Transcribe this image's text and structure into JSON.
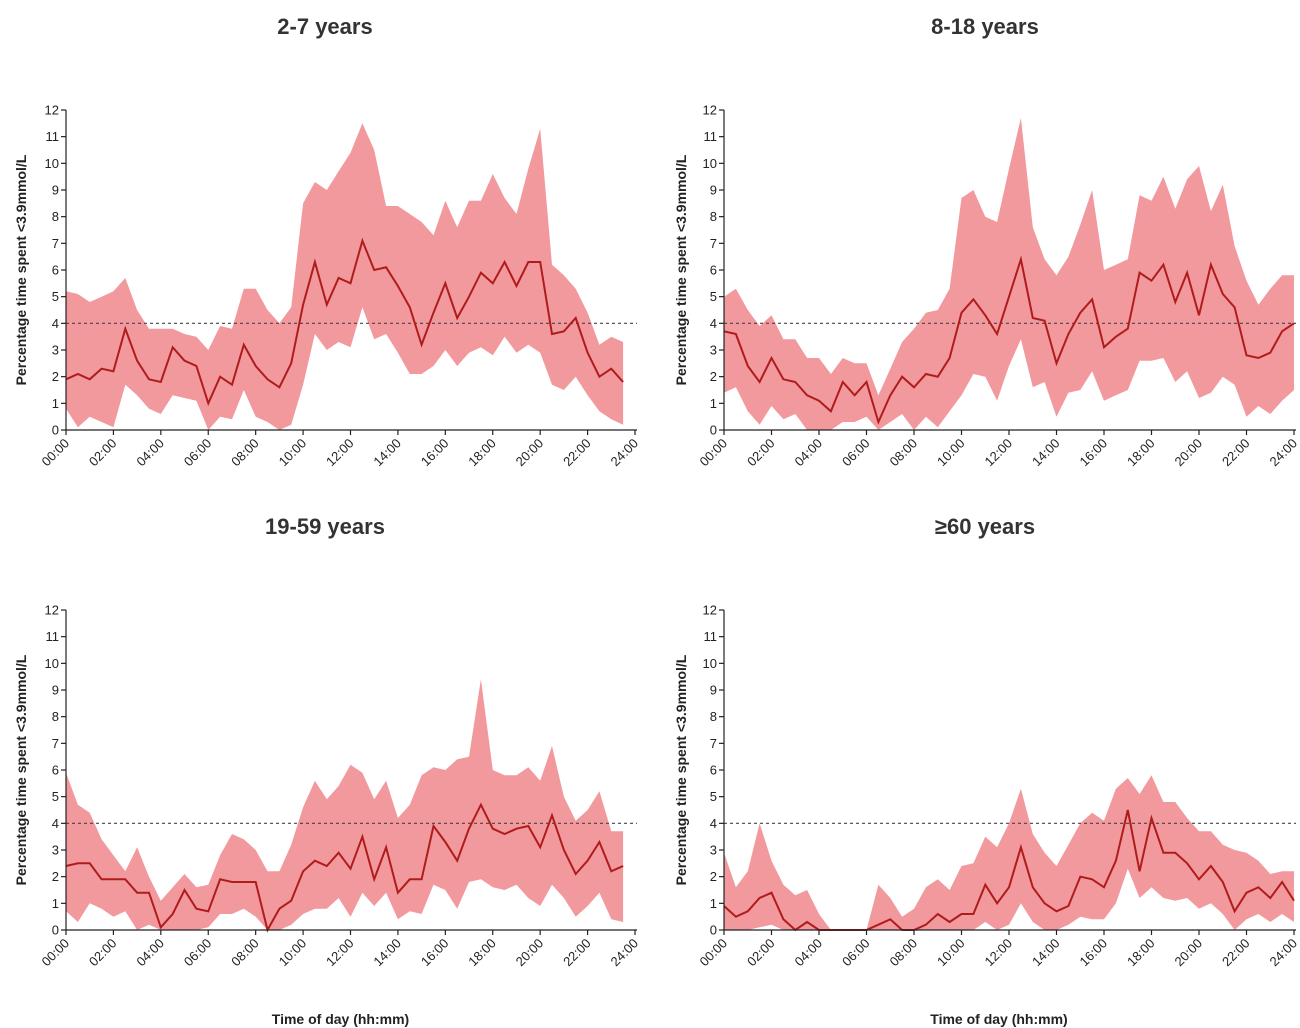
{
  "chart_data": [
    {
      "type": "line",
      "title": "2-7 years",
      "ylabel": "Percentage time spent <3.9mmol/L",
      "xlabel": "",
      "ylim": [
        0,
        12
      ],
      "xlim": [
        0,
        24
      ],
      "yticks": [
        "0",
        "1",
        "2",
        "3",
        "4",
        "5",
        "6",
        "7",
        "8",
        "9",
        "10",
        "11",
        "12"
      ],
      "xticks": [
        "00:00",
        "02:00",
        "04:00",
        "06:00",
        "08:00",
        "10:00",
        "12:00",
        "14:00",
        "16:00",
        "18:00",
        "20:00",
        "22:00",
        "24:00"
      ],
      "reference_line": 4,
      "x": [
        0,
        0.5,
        1,
        1.5,
        2,
        2.5,
        3,
        3.5,
        4,
        4.5,
        5,
        5.5,
        6,
        6.5,
        7,
        7.5,
        8,
        8.5,
        9,
        9.5,
        10,
        10.5,
        11,
        11.5,
        12,
        12.5,
        13,
        13.5,
        14,
        14.5,
        15,
        15.5,
        16,
        16.5,
        17,
        17.5,
        18,
        18.5,
        19,
        19.5,
        20,
        20.5,
        21,
        21.5,
        22,
        22.5,
        23,
        23.5
      ],
      "series": [
        {
          "values": [
            1.9,
            2.1,
            1.9,
            2.3,
            2.2,
            3.8,
            2.6,
            1.9,
            1.8,
            3.1,
            2.6,
            2.4,
            1.0,
            2.0,
            1.7,
            3.2,
            2.4,
            1.9,
            1.6,
            2.5,
            4.7,
            6.3,
            4.7,
            5.7,
            5.5,
            7.1,
            6.0,
            6.1,
            5.4,
            4.6,
            3.2,
            4.4,
            5.5,
            4.2,
            5.0,
            5.9,
            5.5,
            6.3,
            5.4,
            6.3,
            6.3,
            3.6,
            3.7,
            4.2,
            2.9,
            2.0,
            2.3,
            1.8
          ]
        },
        {
          "values": [
            5.2,
            5.1,
            4.8,
            5.0,
            5.2,
            5.7,
            4.5,
            3.8,
            3.8,
            3.8,
            3.6,
            3.5,
            3.0,
            3.9,
            3.8,
            5.3,
            5.3,
            4.5,
            4.0,
            4.6,
            8.5,
            9.3,
            9.0,
            9.7,
            10.4,
            11.5,
            10.5,
            8.4,
            8.4,
            8.1,
            7.8,
            7.3,
            8.6,
            7.6,
            8.6,
            8.6,
            9.6,
            8.7,
            8.1,
            9.8,
            11.3,
            6.2,
            5.8,
            5.3,
            4.4,
            3.2,
            3.5,
            3.3
          ]
        },
        {
          "values": [
            0.8,
            0.1,
            0.5,
            0.3,
            0.1,
            1.7,
            1.3,
            0.8,
            0.6,
            1.3,
            1.2,
            1.1,
            0.0,
            0.5,
            0.4,
            1.5,
            0.5,
            0.3,
            0.0,
            0.2,
            1.7,
            3.6,
            3.0,
            3.3,
            3.1,
            4.6,
            3.4,
            3.6,
            2.9,
            2.1,
            2.1,
            2.4,
            3.0,
            2.4,
            2.9,
            3.1,
            2.8,
            3.5,
            2.9,
            3.2,
            2.9,
            1.7,
            1.5,
            2.0,
            1.3,
            0.7,
            0.4,
            0.2
          ]
        }
      ]
    },
    {
      "type": "line",
      "title": "8-18 years",
      "ylabel": "Percentage time spent <3.9mmol/L",
      "xlabel": "",
      "ylim": [
        0,
        12
      ],
      "xlim": [
        0,
        24
      ],
      "yticks": [
        "0",
        "1",
        "2",
        "3",
        "4",
        "5",
        "6",
        "7",
        "8",
        "9",
        "10",
        "11",
        "12"
      ],
      "xticks": [
        "00:00",
        "02:00",
        "04:00",
        "06:00",
        "08:00",
        "10:00",
        "12:00",
        "14:00",
        "16:00",
        "18:00",
        "20:00",
        "22:00",
        "24:00"
      ],
      "reference_line": 4,
      "x": [
        0,
        0.5,
        1,
        1.5,
        2,
        2.5,
        3,
        3.5,
        4,
        4.5,
        5,
        5.5,
        6,
        6.5,
        7,
        7.5,
        8,
        8.5,
        9,
        9.5,
        10,
        10.5,
        11,
        11.5,
        12,
        12.5,
        13,
        13.5,
        14,
        14.5,
        15,
        15.5,
        16,
        16.5,
        17,
        17.5,
        18,
        18.5,
        19,
        19.5,
        20,
        20.5,
        21,
        21.5,
        22,
        22.5,
        23,
        23.5,
        24
      ],
      "series": [
        {
          "values": [
            3.7,
            3.6,
            2.4,
            1.8,
            2.7,
            1.9,
            1.8,
            1.3,
            1.1,
            0.7,
            1.8,
            1.3,
            1.8,
            0.3,
            1.3,
            2.0,
            1.6,
            2.1,
            2.0,
            2.7,
            4.4,
            4.9,
            4.3,
            3.6,
            5.0,
            6.4,
            4.2,
            4.1,
            2.5,
            3.6,
            4.4,
            4.9,
            3.1,
            3.5,
            3.8,
            5.9,
            5.6,
            6.2,
            4.8,
            5.9,
            4.3,
            6.2,
            5.1,
            4.6,
            2.8,
            2.7,
            2.9,
            3.7,
            4.0
          ]
        },
        {
          "values": [
            5.0,
            5.3,
            4.5,
            3.9,
            4.3,
            3.4,
            3.4,
            2.7,
            2.7,
            2.1,
            2.7,
            2.5,
            2.5,
            1.3,
            2.3,
            3.3,
            3.8,
            4.4,
            4.5,
            5.3,
            8.7,
            9.0,
            8.0,
            7.8,
            9.8,
            11.7,
            7.6,
            6.4,
            5.8,
            6.5,
            7.7,
            9.0,
            6.0,
            6.2,
            6.4,
            8.8,
            8.6,
            9.5,
            8.3,
            9.4,
            9.9,
            8.2,
            9.2,
            6.9,
            5.6,
            4.7,
            5.3,
            5.8,
            5.8
          ]
        },
        {
          "values": [
            1.4,
            1.6,
            0.7,
            0.2,
            0.9,
            0.4,
            0.6,
            0.0,
            0.0,
            0.0,
            0.3,
            0.3,
            0.5,
            0.0,
            0.3,
            0.6,
            0.0,
            0.5,
            0.1,
            0.7,
            1.3,
            2.1,
            2.0,
            1.1,
            2.4,
            3.4,
            1.6,
            1.8,
            0.5,
            1.4,
            1.5,
            2.2,
            1.1,
            1.3,
            1.5,
            2.6,
            2.6,
            2.7,
            1.8,
            2.2,
            1.2,
            1.4,
            2.0,
            1.7,
            0.5,
            0.9,
            0.6,
            1.1,
            1.5
          ]
        }
      ]
    },
    {
      "type": "line",
      "title": "19-59 years",
      "ylabel": "Percentage time spent <3.9mmol/L",
      "xlabel": "Time of day (hh:mm)",
      "ylim": [
        0,
        12
      ],
      "xlim": [
        0,
        24
      ],
      "yticks": [
        "0",
        "1",
        "2",
        "3",
        "4",
        "5",
        "6",
        "7",
        "8",
        "9",
        "10",
        "11",
        "12"
      ],
      "xticks": [
        "00:00",
        "02:00",
        "04:00",
        "06:00",
        "08:00",
        "10:00",
        "12:00",
        "14:00",
        "16:00",
        "18:00",
        "20:00",
        "22:00",
        "24:00"
      ],
      "reference_line": 4,
      "x": [
        0,
        0.5,
        1,
        1.5,
        2,
        2.5,
        3,
        3.5,
        4,
        4.5,
        5,
        5.5,
        6,
        6.5,
        7,
        7.5,
        8,
        8.5,
        9,
        9.5,
        10,
        10.5,
        11,
        11.5,
        12,
        12.5,
        13,
        13.5,
        14,
        14.5,
        15,
        15.5,
        16,
        16.5,
        17,
        17.5,
        18,
        18.5,
        19,
        19.5,
        20,
        20.5,
        21,
        21.5,
        22,
        22.5,
        23,
        23.5
      ],
      "series": [
        {
          "values": [
            2.4,
            2.5,
            2.5,
            1.9,
            1.9,
            1.9,
            1.4,
            1.4,
            0.1,
            0.6,
            1.5,
            0.8,
            0.7,
            1.9,
            1.8,
            1.8,
            1.8,
            0.0,
            0.8,
            1.1,
            2.2,
            2.6,
            2.4,
            2.9,
            2.3,
            3.5,
            1.9,
            3.1,
            1.4,
            1.9,
            1.9,
            3.9,
            3.3,
            2.6,
            3.8,
            4.7,
            3.8,
            3.6,
            3.8,
            3.9,
            3.1,
            4.3,
            3.0,
            2.1,
            2.6,
            3.3,
            2.2,
            2.4
          ]
        },
        {
          "values": [
            5.9,
            4.7,
            4.4,
            3.4,
            2.8,
            2.2,
            3.1,
            2.0,
            1.1,
            1.6,
            2.1,
            1.6,
            1.7,
            2.8,
            3.6,
            3.4,
            3.0,
            2.2,
            2.2,
            3.2,
            4.6,
            5.6,
            4.9,
            5.4,
            6.2,
            5.9,
            4.9,
            5.6,
            4.2,
            4.7,
            5.8,
            6.1,
            6.0,
            6.4,
            6.5,
            9.4,
            6.0,
            5.8,
            5.8,
            6.1,
            5.6,
            6.9,
            5.0,
            4.1,
            4.5,
            5.2,
            3.7,
            3.7
          ]
        },
        {
          "values": [
            0.7,
            0.3,
            1.0,
            0.8,
            0.5,
            0.7,
            0.0,
            0.2,
            0.0,
            0.0,
            0.0,
            0.0,
            0.1,
            0.6,
            0.6,
            0.8,
            0.5,
            0.0,
            0.0,
            0.2,
            0.6,
            0.8,
            0.8,
            1.2,
            0.5,
            1.4,
            0.9,
            1.4,
            0.4,
            0.7,
            0.6,
            1.7,
            1.5,
            0.8,
            1.8,
            1.9,
            1.6,
            1.5,
            1.7,
            1.2,
            0.9,
            1.7,
            1.2,
            0.5,
            0.9,
            1.4,
            0.4,
            0.3
          ]
        }
      ]
    },
    {
      "type": "line",
      "title": "≥60 years",
      "ylabel": "Percentage time spent <3.9mmol/L",
      "xlabel": "Time of day (hh:mm)",
      "ylim": [
        0,
        12
      ],
      "xlim": [
        0,
        24
      ],
      "yticks": [
        "0",
        "1",
        "2",
        "3",
        "4",
        "5",
        "6",
        "7",
        "8",
        "9",
        "10",
        "11",
        "12"
      ],
      "xticks": [
        "00:00",
        "02:00",
        "04:00",
        "06:00",
        "08:00",
        "10:00",
        "12:00",
        "14:00",
        "16:00",
        "18:00",
        "20:00",
        "22:00",
        "24:00"
      ],
      "reference_line": 4,
      "x": [
        0,
        0.5,
        1,
        1.5,
        2,
        2.5,
        3,
        3.5,
        4,
        4.5,
        5,
        5.5,
        6,
        6.5,
        7,
        7.5,
        8,
        8.5,
        9,
        9.5,
        10,
        10.5,
        11,
        11.5,
        12,
        12.5,
        13,
        13.5,
        14,
        14.5,
        15,
        15.5,
        16,
        16.5,
        17,
        17.5,
        18,
        18.5,
        19,
        19.5,
        20,
        20.5,
        21,
        21.5,
        22,
        22.5,
        23,
        23.5,
        24
      ],
      "series": [
        {
          "values": [
            0.9,
            0.5,
            0.7,
            1.2,
            1.4,
            0.4,
            0.0,
            0.3,
            0.0,
            0.0,
            0.0,
            0.0,
            0.0,
            0.2,
            0.4,
            0.0,
            0.0,
            0.2,
            0.6,
            0.3,
            0.6,
            0.6,
            1.7,
            1.0,
            1.6,
            3.1,
            1.6,
            1.0,
            0.7,
            0.9,
            2.0,
            1.9,
            1.6,
            2.6,
            4.5,
            2.2,
            4.2,
            2.9,
            2.9,
            2.5,
            1.9,
            2.4,
            1.8,
            0.7,
            1.4,
            1.6,
            1.2,
            1.8,
            1.1
          ]
        },
        {
          "values": [
            2.9,
            1.6,
            2.2,
            4.0,
            2.6,
            1.7,
            1.3,
            1.5,
            0.6,
            0.0,
            0.0,
            0.0,
            0.0,
            1.7,
            1.2,
            0.5,
            0.8,
            1.6,
            1.9,
            1.5,
            2.4,
            2.5,
            3.5,
            3.1,
            4.0,
            5.3,
            3.6,
            2.9,
            2.4,
            3.2,
            4.0,
            4.4,
            4.1,
            5.3,
            5.7,
            5.1,
            5.8,
            4.8,
            4.8,
            4.2,
            3.7,
            3.7,
            3.2,
            3.0,
            2.9,
            2.6,
            2.1,
            2.2,
            2.2
          ]
        },
        {
          "values": [
            0.0,
            0.0,
            0.0,
            0.1,
            0.2,
            0.0,
            0.0,
            0.0,
            0.0,
            0.0,
            0.0,
            0.0,
            0.0,
            0.0,
            0.0,
            0.0,
            0.0,
            0.0,
            0.0,
            0.0,
            0.0,
            0.0,
            0.3,
            0.0,
            0.2,
            1.0,
            0.3,
            0.0,
            0.0,
            0.2,
            0.5,
            0.4,
            0.4,
            1.0,
            2.3,
            1.2,
            1.6,
            1.2,
            1.1,
            1.2,
            0.8,
            1.0,
            0.6,
            0.0,
            0.4,
            0.6,
            0.3,
            0.6,
            0.3
          ]
        }
      ]
    }
  ]
}
